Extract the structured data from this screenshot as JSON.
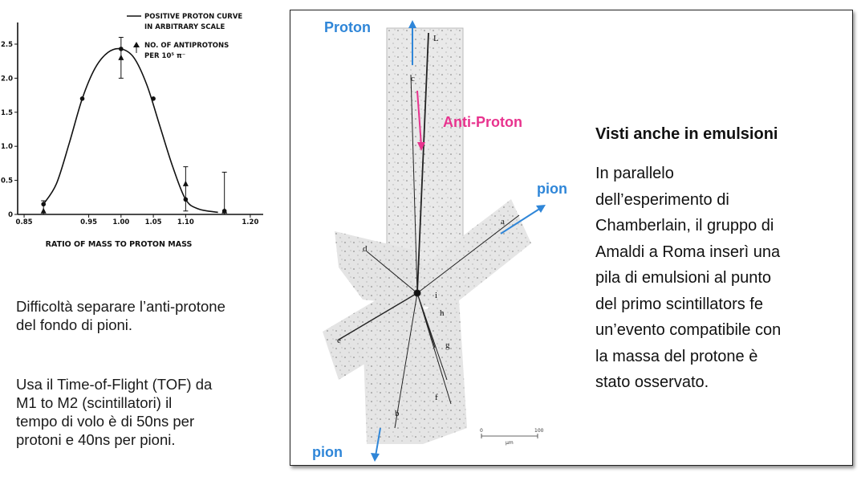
{
  "chart_data": {
    "type": "line",
    "xlabel": "RATIO OF MASS TO PROTON MASS",
    "ylabel": "",
    "x_ticks": [
      "0.85",
      "0.95",
      "1.00",
      "1.05",
      "1.10",
      "1.20"
    ],
    "y_ticks": [
      "0",
      "0.5",
      "1.0",
      "1.5",
      "2.0",
      "2.5"
    ],
    "xlim": [
      0.84,
      1.22
    ],
    "ylim": [
      0,
      2.7
    ],
    "legend": [
      "POSITIVE PROTON CURVE\nIN ARBITRARY SCALE",
      "NO. OF ANTIPROTONS\nPER 10⁵ π⁻"
    ],
    "legend_lines": [
      [
        "POSITIVE PROTON CURVE",
        "IN ARBITRARY SCALE"
      ],
      [
        "NO. OF ANTIPROTONS",
        "PER 10⁵ π⁻"
      ]
    ],
    "series": [
      {
        "name": "POSITIVE PROTON CURVE IN ARBITRARY SCALE",
        "marker": "circle",
        "x": [
          0.88,
          0.94,
          1.0,
          1.05,
          1.1,
          1.16
        ],
        "y": [
          0.15,
          1.7,
          2.43,
          1.7,
          0.22,
          0.05
        ]
      },
      {
        "name": "NO. OF ANTIPROTONS PER 10⁵ π⁻",
        "marker": "triangle",
        "x": [
          0.88,
          1.0,
          1.1,
          1.16
        ],
        "y": [
          0.05,
          2.3,
          0.45,
          0.05
        ],
        "err_low": [
          0.0,
          2.0,
          0.05,
          0.0
        ],
        "err_high": [
          0.2,
          2.6,
          0.7,
          0.62
        ]
      }
    ],
    "curve": {
      "x": [
        0.88,
        0.9,
        0.92,
        0.94,
        0.96,
        0.98,
        1.0,
        1.02,
        1.04,
        1.06,
        1.08,
        1.1,
        1.12,
        1.15
      ],
      "y": [
        0.15,
        0.45,
        1.05,
        1.7,
        2.15,
        2.38,
        2.43,
        2.3,
        1.9,
        1.3,
        0.7,
        0.22,
        0.08,
        0.03
      ]
    }
  },
  "left_text": {
    "para1": "Difficoltà separare l’anti-protone\ndel fondo di pioni.",
    "para2": "Usa il Time-of-Flight (TOF) da\nM1 to M2 (scintillatori) il\ntempo di volo è di 50ns per\nprotoni e 40ns per pioni."
  },
  "figure": {
    "labels": {
      "proton": "Proton",
      "anti_proton": "Anti-Proton",
      "pion_right": "pion",
      "pion_bottom": "pion"
    },
    "track_letters": [
      "L",
      "c",
      "d",
      "a",
      "i",
      "h",
      "e",
      "g",
      "f",
      "b"
    ],
    "scale_bar_values": [
      "0",
      "100"
    ],
    "scale_bar_unit": "μm",
    "colors": {
      "blue": "#2f86d8",
      "pink": "#e8338e"
    }
  },
  "side": {
    "title": "Visti anche in emulsioni",
    "body": "In parallelo\ndell’esperimento di\nChamberlain, il gruppo di\nAmaldi a Roma inserì una\npila di emulsioni al punto\ndel primo scintillators fe\nun’evento compatibile con\nla massa del protone è\nstato osservato."
  }
}
